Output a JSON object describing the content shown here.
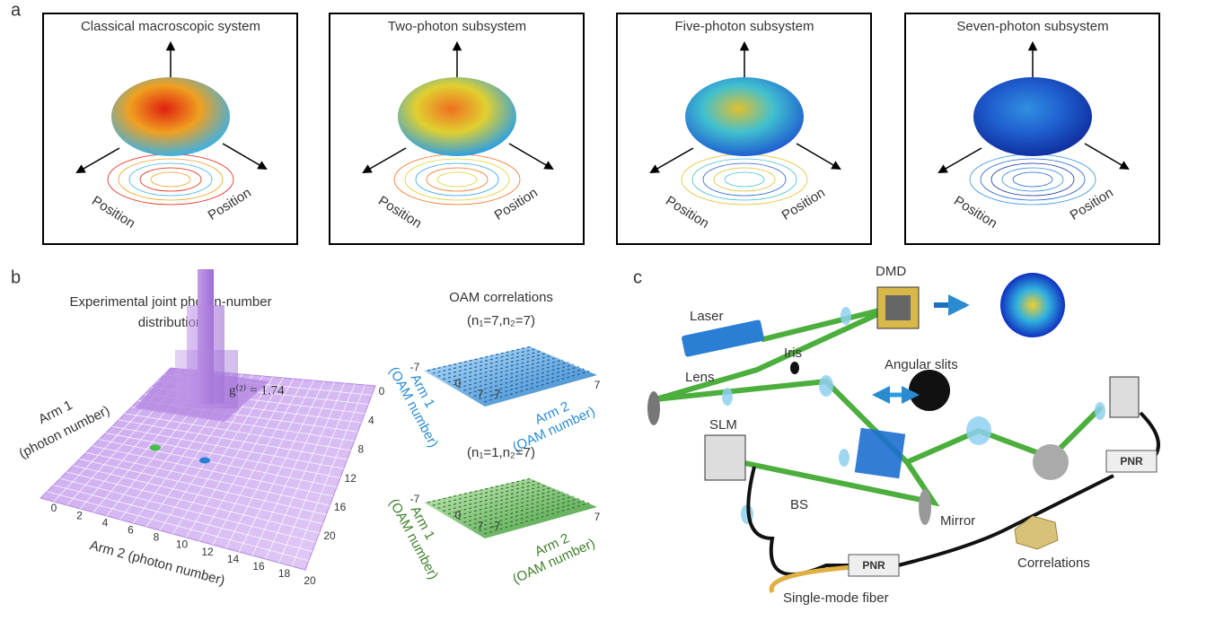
{
  "panels": {
    "a": {
      "label": "a",
      "systems": [
        {
          "title": "Classical macroscopic system",
          "axis_labels": [
            "Position",
            "Position"
          ]
        },
        {
          "title": "Two-photon subsystem",
          "axis_labels": [
            "Position",
            "Position"
          ]
        },
        {
          "title": "Five-photon subsystem",
          "axis_labels": [
            "Position",
            "Position"
          ]
        },
        {
          "title": "Seven-photon subsystem",
          "axis_labels": [
            "Position",
            "Position"
          ]
        }
      ]
    },
    "b": {
      "label": "b",
      "joint": {
        "title_lines": [
          "Experimental joint photon-number",
          "distribution"
        ],
        "g2": "g⁽²⁾ = 1.74",
        "arm1_label": [
          "Arm 1",
          "(photon number)"
        ],
        "arm2_label": "Arm 2 (photon number)",
        "arm1_ticks": [
          "0",
          "4",
          "8",
          "12",
          "16",
          "20"
        ],
        "arm2_ticks": [
          "0",
          "2",
          "4",
          "6",
          "8",
          "10",
          "12",
          "14",
          "16",
          "18",
          "20"
        ]
      },
      "oam": {
        "title": "OAM correlations",
        "plots": [
          {
            "subtitle": "(n₁=7,n₂=7)",
            "arm1_ticks": [
              "-7",
              "0",
              "7"
            ],
            "arm2_ticks": [
              "-7",
              "7"
            ],
            "arm1_label": [
              "Arm 1",
              "(OAM number)"
            ],
            "arm2_label": [
              "Arm 2",
              "(OAM number)"
            ]
          },
          {
            "subtitle": "(n₁=1,n₂=7)",
            "arm1_ticks": [
              "-7",
              "0",
              "7"
            ],
            "arm2_ticks": [
              "-7",
              "7"
            ],
            "arm1_label": [
              "Arm 1",
              "(OAM number)"
            ],
            "arm2_label": [
              "Arm 2",
              "(OAM number)"
            ]
          }
        ]
      }
    },
    "c": {
      "label": "c",
      "components": {
        "laser": "Laser",
        "dmd": "DMD",
        "iris": "Iris",
        "lens": "Lens",
        "angular_slits": "Angular slits",
        "slm": "SLM",
        "bs": "BS",
        "mirror": "Mirror",
        "pnr": [
          "PNR",
          "PNR"
        ],
        "correlations": "Correlations",
        "fiber": "Single-mode fiber"
      }
    }
  }
}
